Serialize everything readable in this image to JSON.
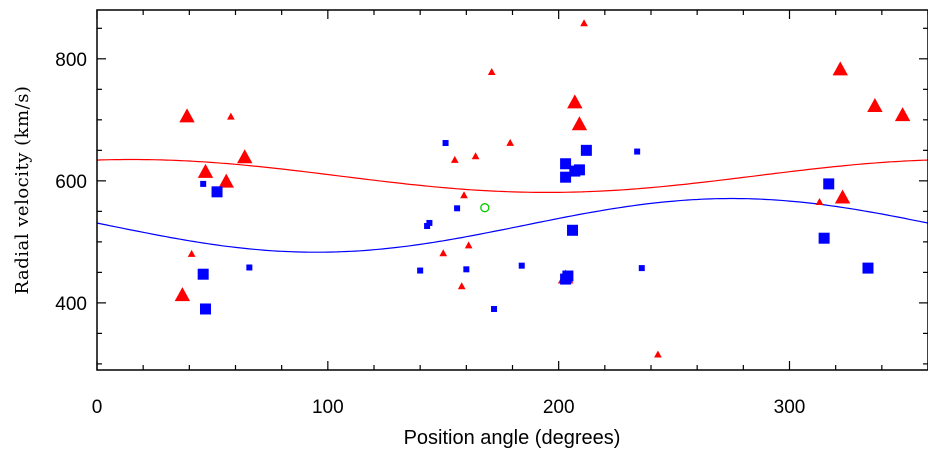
{
  "chart_data": {
    "type": "scatter",
    "title": "",
    "xlabel": "Position angle (degrees)",
    "ylabel": "Radial velocity (km/s)",
    "xlim": [
      0,
      360
    ],
    "ylim": [
      290,
      880
    ],
    "x_ticks": [
      0,
      100,
      200,
      300
    ],
    "y_ticks": [
      400,
      600,
      800
    ],
    "colors": {
      "red": "#ff0000",
      "blue": "#0000ff",
      "green": "#00cc00",
      "axis": "#000000"
    },
    "series": [
      {
        "marker": "triangle",
        "color": "red",
        "points": [
          {
            "x": 37,
            "y": 412,
            "size": "large"
          },
          {
            "x": 39,
            "y": 705,
            "size": "large"
          },
          {
            "x": 41,
            "y": 480,
            "size": "small"
          },
          {
            "x": 47,
            "y": 614,
            "size": "large"
          },
          {
            "x": 56,
            "y": 598,
            "size": "large"
          },
          {
            "x": 58,
            "y": 705,
            "size": "small"
          },
          {
            "x": 64,
            "y": 638,
            "size": "large"
          },
          {
            "x": 150,
            "y": 481,
            "size": "small"
          },
          {
            "x": 155,
            "y": 634,
            "size": "small"
          },
          {
            "x": 158,
            "y": 427,
            "size": "small"
          },
          {
            "x": 159,
            "y": 576,
            "size": "small"
          },
          {
            "x": 161,
            "y": 494,
            "size": "small"
          },
          {
            "x": 164,
            "y": 640,
            "size": "small"
          },
          {
            "x": 171,
            "y": 778,
            "size": "small"
          },
          {
            "x": 179,
            "y": 662,
            "size": "small"
          },
          {
            "x": 203,
            "y": 441,
            "size": "large"
          },
          {
            "x": 207,
            "y": 728,
            "size": "large"
          },
          {
            "x": 209,
            "y": 692,
            "size": "large"
          },
          {
            "x": 211,
            "y": 858,
            "size": "small"
          },
          {
            "x": 243,
            "y": 315,
            "size": "small"
          },
          {
            "x": 313,
            "y": 565,
            "size": "small"
          },
          {
            "x": 322,
            "y": 782,
            "size": "large"
          },
          {
            "x": 323,
            "y": 572,
            "size": "large"
          },
          {
            "x": 337,
            "y": 722,
            "size": "large"
          },
          {
            "x": 349,
            "y": 707,
            "size": "large"
          }
        ]
      },
      {
        "marker": "square",
        "color": "blue",
        "points": [
          {
            "x": 46,
            "y": 595,
            "size": "small"
          },
          {
            "x": 46,
            "y": 447,
            "size": "large"
          },
          {
            "x": 47,
            "y": 390,
            "size": "large"
          },
          {
            "x": 52,
            "y": 582,
            "size": "large"
          },
          {
            "x": 66,
            "y": 458,
            "size": "small"
          },
          {
            "x": 140,
            "y": 453,
            "size": "small"
          },
          {
            "x": 143,
            "y": 526,
            "size": "small"
          },
          {
            "x": 144,
            "y": 531,
            "size": "small"
          },
          {
            "x": 151,
            "y": 662,
            "size": "small"
          },
          {
            "x": 156,
            "y": 555,
            "size": "small"
          },
          {
            "x": 160,
            "y": 455,
            "size": "small"
          },
          {
            "x": 172,
            "y": 390,
            "size": "small"
          },
          {
            "x": 184,
            "y": 461,
            "size": "small"
          },
          {
            "x": 203,
            "y": 606,
            "size": "large"
          },
          {
            "x": 203,
            "y": 628,
            "size": "large"
          },
          {
            "x": 203,
            "y": 439,
            "size": "large"
          },
          {
            "x": 204,
            "y": 444,
            "size": "large"
          },
          {
            "x": 206,
            "y": 519,
            "size": "large"
          },
          {
            "x": 207,
            "y": 616,
            "size": "large"
          },
          {
            "x": 209,
            "y": 618,
            "size": "large"
          },
          {
            "x": 212,
            "y": 650,
            "size": "large"
          },
          {
            "x": 234,
            "y": 648,
            "size": "small"
          },
          {
            "x": 236,
            "y": 457,
            "size": "small"
          },
          {
            "x": 315,
            "y": 506,
            "size": "large"
          },
          {
            "x": 317,
            "y": 595,
            "size": "large"
          },
          {
            "x": 334,
            "y": 457,
            "size": "large"
          }
        ]
      },
      {
        "marker": "circle-open",
        "color": "green",
        "points": [
          {
            "x": 168,
            "y": 556,
            "size": "medium"
          }
        ]
      }
    ],
    "curves": [
      {
        "color": "red",
        "mean": 608,
        "amplitude": 27,
        "peak_angle": 15
      },
      {
        "color": "blue",
        "mean": 527,
        "amplitude": 44,
        "peak_angle": 275
      }
    ]
  }
}
